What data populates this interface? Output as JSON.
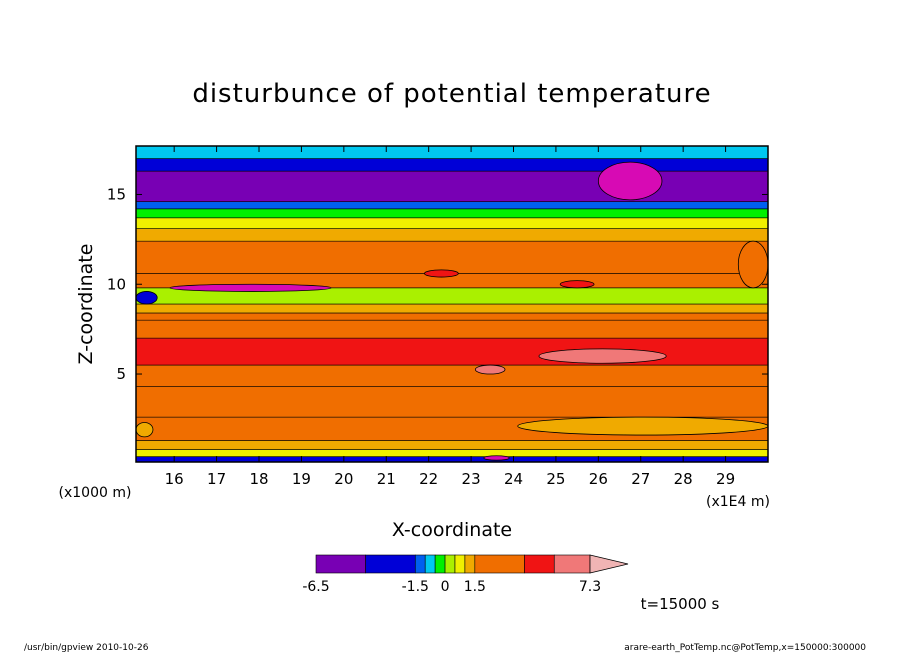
{
  "chart_data": {
    "type": "heatmap",
    "title": "disturbunce of potential temperature",
    "xlabel": "X-coordinate",
    "ylabel": "Z-coordinate",
    "x_unit_left": "(x1000 m)",
    "x_unit_right": "(x1E4 m)",
    "xlim": [
      15.1,
      30.0
    ],
    "ylim": [
      0.1,
      17.7
    ],
    "x_ticks": [
      16,
      17,
      18,
      19,
      20,
      21,
      22,
      23,
      24,
      25,
      26,
      27,
      28,
      29
    ],
    "y_ticks": [
      5,
      10,
      15
    ],
    "time_label": "t=15000 s",
    "colorbar": {
      "tick_labels": [
        "-6.5",
        "-1.5",
        "0",
        "1.5",
        "7.3"
      ],
      "tick_values": [
        -6.5,
        -1.5,
        0,
        1.5,
        7.3
      ],
      "levels": [
        -6.5,
        -4.0,
        -1.5,
        -1.0,
        -0.5,
        0,
        0.5,
        1.0,
        1.5,
        4.0,
        5.5,
        7.3
      ],
      "colors": [
        "#d70ab4",
        "#7800b4",
        "#0000d7",
        "#005ff0",
        "#00c8f0",
        "#00f000",
        "#aaf000",
        "#f0f000",
        "#f0aa00",
        "#f06e00",
        "#f01414",
        "#f07878",
        "#f0b4b4"
      ]
    },
    "bands": [
      {
        "z": [
          0.1,
          0.4
        ],
        "value": -4.0
      },
      {
        "z": [
          0.4,
          0.8
        ],
        "value": 0.6
      },
      {
        "z": [
          0.8,
          1.3
        ],
        "value": 1.2
      },
      {
        "z": [
          1.3,
          2.6
        ],
        "value": 2.5
      },
      {
        "z": [
          2.6,
          4.3
        ],
        "value": 3.0
      },
      {
        "z": [
          4.3,
          5.5
        ],
        "value": 3.6
      },
      {
        "z": [
          5.5,
          7.0
        ],
        "value": 4.8
      },
      {
        "z": [
          7.0,
          8.0
        ],
        "value": 3.0
      },
      {
        "z": [
          8.0,
          8.4
        ],
        "value": 1.8
      },
      {
        "z": [
          8.4,
          8.9
        ],
        "value": 1.2
      },
      {
        "z": [
          8.9,
          9.8
        ],
        "value": 0.3
      },
      {
        "z": [
          9.8,
          10.6
        ],
        "value": 2.5
      },
      {
        "z": [
          10.6,
          12.4
        ],
        "value": 3.0
      },
      {
        "z": [
          12.4,
          13.1
        ],
        "value": 1.2
      },
      {
        "z": [
          13.1,
          13.7
        ],
        "value": 0.6
      },
      {
        "z": [
          13.7,
          14.2
        ],
        "value": -0.3
      },
      {
        "z": [
          14.2,
          14.6
        ],
        "value": -1.2
      },
      {
        "z": [
          14.6,
          16.3
        ],
        "value": -5.5
      },
      {
        "z": [
          16.3,
          17.0
        ],
        "value": -2.5
      },
      {
        "z": [
          17.0,
          17.7
        ],
        "value": -0.6
      }
    ],
    "features": [
      {
        "x": [
          26.0,
          27.5
        ],
        "z": [
          14.7,
          16.8
        ],
        "value": -6.8
      },
      {
        "x": [
          24.6,
          27.6
        ],
        "z": [
          5.6,
          6.4
        ],
        "value": 6.0
      },
      {
        "x": [
          23.1,
          23.8
        ],
        "z": [
          5.0,
          5.5
        ],
        "value": 6.0
      },
      {
        "x": [
          15.9,
          19.7
        ],
        "z": [
          9.6,
          10.0
        ],
        "value": -7.0
      },
      {
        "x": [
          15.1,
          15.6
        ],
        "z": [
          8.9,
          9.6
        ],
        "value": -3.0
      },
      {
        "x": [
          21.9,
          22.7
        ],
        "z": [
          10.4,
          10.8
        ],
        "value": 4.8
      },
      {
        "x": [
          25.1,
          25.9
        ],
        "z": [
          9.8,
          10.2
        ],
        "value": 4.8
      },
      {
        "x": [
          23.3,
          23.9
        ],
        "z": [
          0.2,
          0.45
        ],
        "value": -7.0
      },
      {
        "x": [
          29.3,
          30.0
        ],
        "z": [
          9.8,
          12.4
        ],
        "value": 1.8
      },
      {
        "x": [
          24.1,
          30.0
        ],
        "z": [
          1.6,
          2.6
        ],
        "value": 1.2
      },
      {
        "x": [
          15.1,
          15.5
        ],
        "z": [
          1.5,
          2.3
        ],
        "value": 1.2
      }
    ]
  },
  "footer": {
    "left": "/usr/bin/gpview   2010-10-26",
    "right": "arare-earth_PotTemp.nc@PotTemp,x=150000:300000"
  }
}
